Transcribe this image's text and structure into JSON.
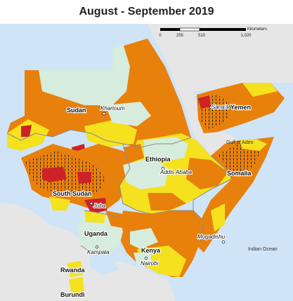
{
  "title": "August - September 2019",
  "scale_bar": {
    "unit": "Kilometers",
    "ticks": [
      "0",
      "255",
      "510",
      "1,020"
    ]
  },
  "countries": {
    "sudan": "Sudan",
    "south_sudan": "South Sudan",
    "ethiopia": "Ethiopia",
    "somalia": "Somalia",
    "yemen": "Yemen",
    "uganda": "Uganda",
    "kenya": "Kenya",
    "rwanda": "Rwanda",
    "burundi": "Burundi"
  },
  "cities": {
    "khartoum": "Khartoum",
    "addis_ababa": "Addis Ababa",
    "sanaa": "Sana'a",
    "juba": "Juba",
    "kampala": "Kampala",
    "nairobi": "Nairobi",
    "mogadishu": "Mogadishu"
  },
  "water": {
    "gulf_of_aden": "Gulf of Aden",
    "indian_ocean": "Indian Ocean"
  },
  "colors": {
    "sea": "#cfe4f6",
    "outside_land": "#e6e6e6",
    "phase1_minimal": "#d6ecdc",
    "phase2_stressed": "#f5e11e",
    "phase3_crisis": "#e8800c",
    "phase4_emergency": "#cc2228",
    "not_analysed": "#ffffff"
  }
}
